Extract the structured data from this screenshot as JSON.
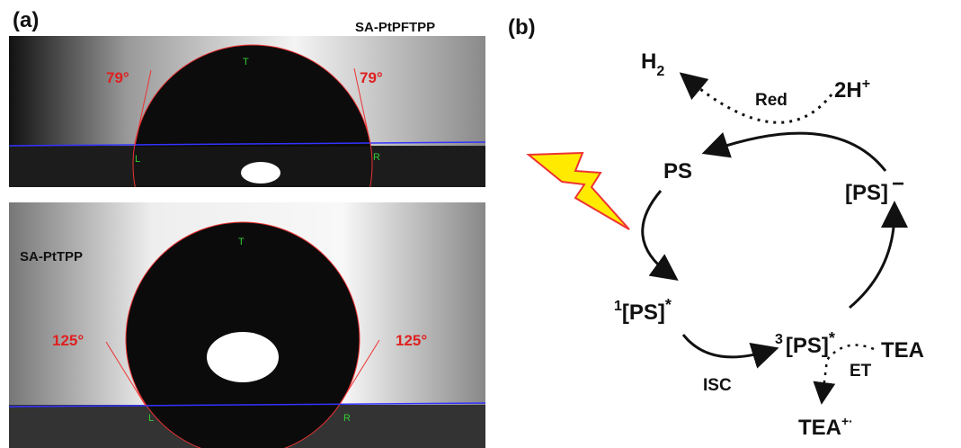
{
  "panel_a": {
    "label": "(a)",
    "images": [
      {
        "name": "SA-PtPFTPP",
        "angle_left": "79°",
        "angle_right": "79°",
        "top": "T",
        "left": "L",
        "right": "R"
      },
      {
        "name": "SA-PtTPP",
        "angle_left": "125°",
        "angle_right": "125°",
        "top": "T",
        "left": "L",
        "right": "R"
      }
    ]
  },
  "panel_b": {
    "label": "(b)",
    "h2": {
      "text": "H",
      "sub": "2"
    },
    "protons": {
      "text": "2H",
      "sup": "+"
    },
    "red": "Red",
    "ps": "PS",
    "ps_minus": {
      "text": "[PS]",
      "sup": "−"
    },
    "singlet": {
      "pre": "1",
      "text": "[PS]",
      "sup": "*"
    },
    "triplet": {
      "pre": "3",
      "text": "[PS]",
      "sup": "*"
    },
    "isc": "ISC",
    "tea": "TEA",
    "et": "ET",
    "tea_ox": {
      "text": "TEA",
      "sup": "+·"
    }
  }
}
